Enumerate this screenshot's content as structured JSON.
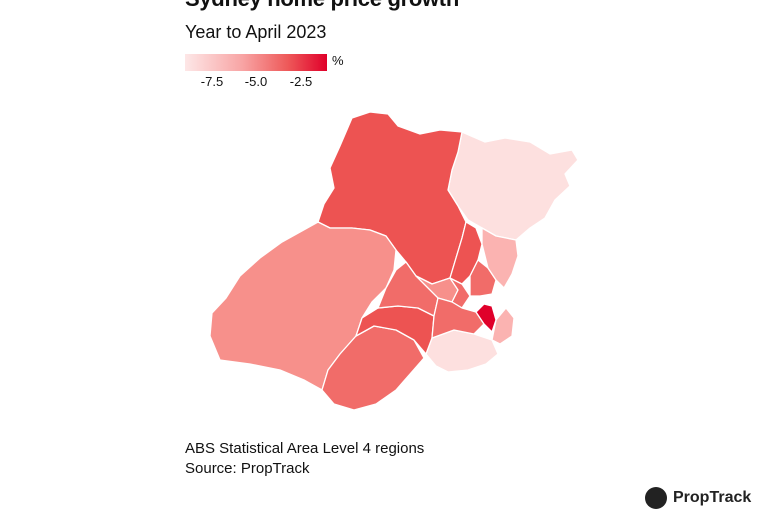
{
  "title": "Sydney home price growth",
  "subtitle": "Year to April 2023",
  "legend": {
    "unit": "%",
    "ticks": [
      "-7.5",
      "-5.0",
      "-2.5"
    ],
    "colors": [
      "#fde7e7",
      "#f8a5a5",
      "#ee5a5a",
      "#e0002a"
    ]
  },
  "map": {
    "boundary_color": "#ffffff",
    "regions": [
      {
        "tone": "light"
      },
      {
        "tone": "dark"
      },
      {
        "tone": "mid"
      },
      {
        "tone": "light"
      },
      {
        "tone": "mid-dark"
      },
      {
        "tone": "dark"
      },
      {
        "tone": "mid-dark"
      },
      {
        "tone": "mid"
      },
      {
        "tone": "mid-dark"
      },
      {
        "tone": "dark"
      },
      {
        "tone": "mid-dark"
      },
      {
        "tone": "mid-light"
      },
      {
        "tone": "mid-dark"
      },
      {
        "tone": "mid-light"
      },
      {
        "tone": "highest"
      }
    ],
    "tone_colors": {
      "light": "#fde0df",
      "mid-light": "#fbb3b1",
      "mid": "#f7908b",
      "mid-dark": "#f16c69",
      "dark": "#ed5352",
      "highest": "#e0002a"
    }
  },
  "note": "ABS Statistical Area Level 4 regions",
  "source": "Source: PropTrack",
  "logo": {
    "text": "PropTrack",
    "mark_icon": "proptrack-logo-icon"
  }
}
